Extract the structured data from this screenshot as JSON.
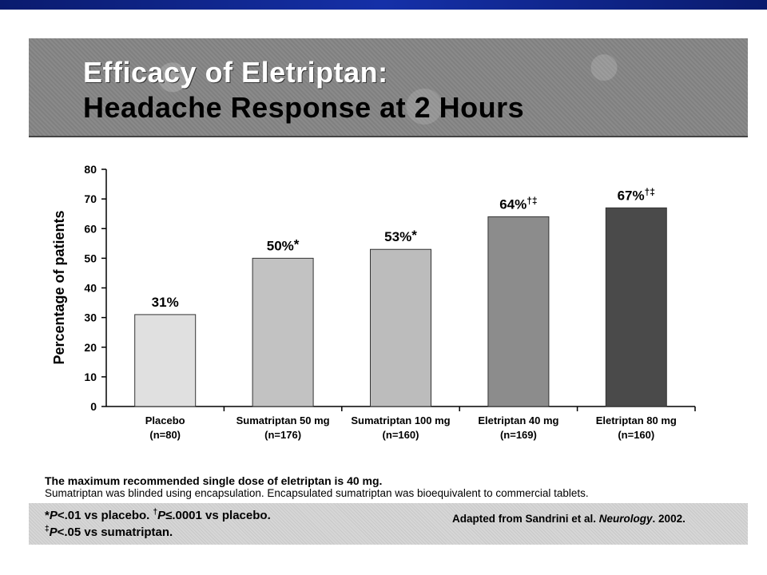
{
  "header": {
    "title_line1": "Efficacy of Eletriptan:",
    "title_line2": "Headache Response at 2 Hours"
  },
  "chart_data": {
    "type": "bar",
    "categories": [
      {
        "name": "Placebo",
        "n": "(n=80)"
      },
      {
        "name": "Sumatriptan 50 mg",
        "n": "(n=176)"
      },
      {
        "name": "Sumatriptan 100 mg",
        "n": "(n=160)"
      },
      {
        "name": "Eletriptan 40 mg",
        "n": "(n=169)"
      },
      {
        "name": "Eletriptan 80 mg",
        "n": "(n=160)"
      }
    ],
    "values": [
      31,
      50,
      53,
      64,
      67
    ],
    "data_labels": [
      "31%",
      "50%",
      "53%",
      "64%",
      "67%"
    ],
    "data_label_marks": [
      "",
      "*",
      "*",
      "†‡",
      "†‡"
    ],
    "ylabel": "Percentage of patients",
    "xlabel": "",
    "ylim": [
      0,
      80
    ],
    "yticks": [
      0,
      10,
      20,
      30,
      40,
      50,
      60,
      70,
      80
    ],
    "bar_colors": [
      "#e0e0e0",
      "#c2c2c2",
      "#bcbcbc",
      "#8c8c8c",
      "#4a4a4a"
    ],
    "grid": false
  },
  "notes": {
    "line1": "The maximum recommended single dose of eletriptan is 40 mg.",
    "line2": "Sumatriptan was blinded using encapsulation. Encapsulated sumatriptan was bioequivalent to commercial tablets."
  },
  "footnotes": {
    "f1_mark": "*",
    "f1_p": "P",
    "f1_text": "<.01 vs placebo. ",
    "f2_mark": "†",
    "f2_p": "P",
    "f2_text": "≤.0001 vs placebo.",
    "f3_mark": "‡",
    "f3_p": "P",
    "f3_text": "<.05 vs sumatriptan."
  },
  "source": {
    "prefix": "Adapted from Sandrini et al. ",
    "journal": "Neurology",
    "suffix": ". 2002."
  },
  "colors": {
    "top_band": "#1530a8",
    "banner": "#8a8a8a",
    "footer_box": "#d6d6d6"
  }
}
